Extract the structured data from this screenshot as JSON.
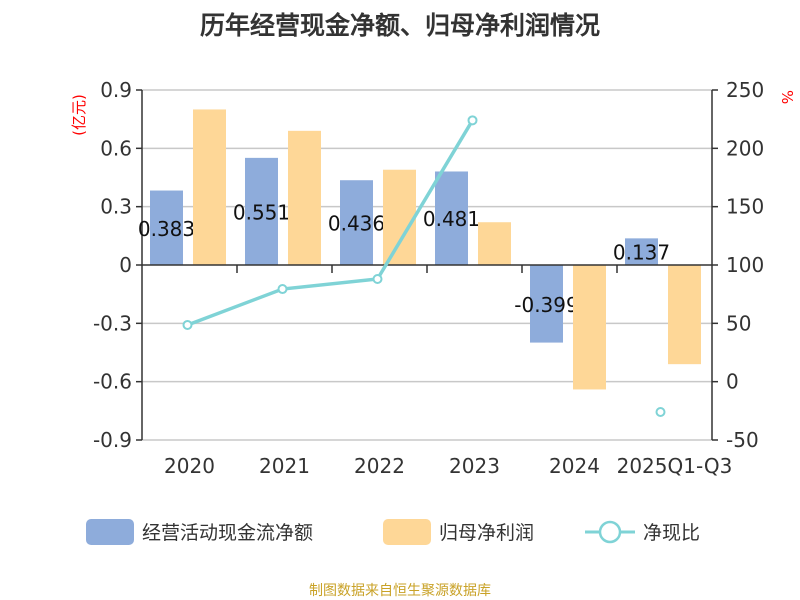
{
  "title": "历年经营现金净额、归母净利润情况",
  "source": "制图数据来自恒生聚源数据库",
  "colors": {
    "cash": "#8eacdb",
    "profit": "#fed797",
    "ratio": "#7fd3d6",
    "unit": "#ff0000"
  },
  "chart_data": {
    "type": "bar",
    "title": "历年经营现金净额、归母净利润情况",
    "categories": [
      "2020",
      "2021",
      "2022",
      "2023",
      "2024",
      "2025Q1-Q3"
    ],
    "y_left": {
      "label": "(亿元)",
      "ylim": [
        -0.9,
        0.9
      ],
      "ticks": [
        "0.9",
        "0.6",
        "0.3",
        "0",
        "-0.3",
        "-0.6",
        "-0.9"
      ]
    },
    "y_right": {
      "label": "%",
      "ylim": [
        -50,
        250
      ],
      "ticks": [
        "250",
        "200",
        "150",
        "100",
        "50",
        "0",
        "-50"
      ]
    },
    "grid": true,
    "legend": "bottom",
    "series": [
      {
        "name": "经营活动现金流净额",
        "type": "bar",
        "axis": "left",
        "values": [
          0.383,
          0.551,
          0.436,
          0.481,
          -0.399,
          0.137
        ],
        "labels": [
          "0.383",
          "0.551",
          "0.436",
          "0.481",
          "-0.399",
          "0.137"
        ]
      },
      {
        "name": "归母净利润",
        "type": "bar",
        "axis": "left",
        "values": [
          0.8,
          0.69,
          0.49,
          0.22,
          -0.64,
          -0.51
        ]
      },
      {
        "name": "净现比",
        "type": "line",
        "axis": "right",
        "values": [
          48.6,
          79.4,
          88,
          224,
          null,
          -26
        ]
      }
    ]
  }
}
